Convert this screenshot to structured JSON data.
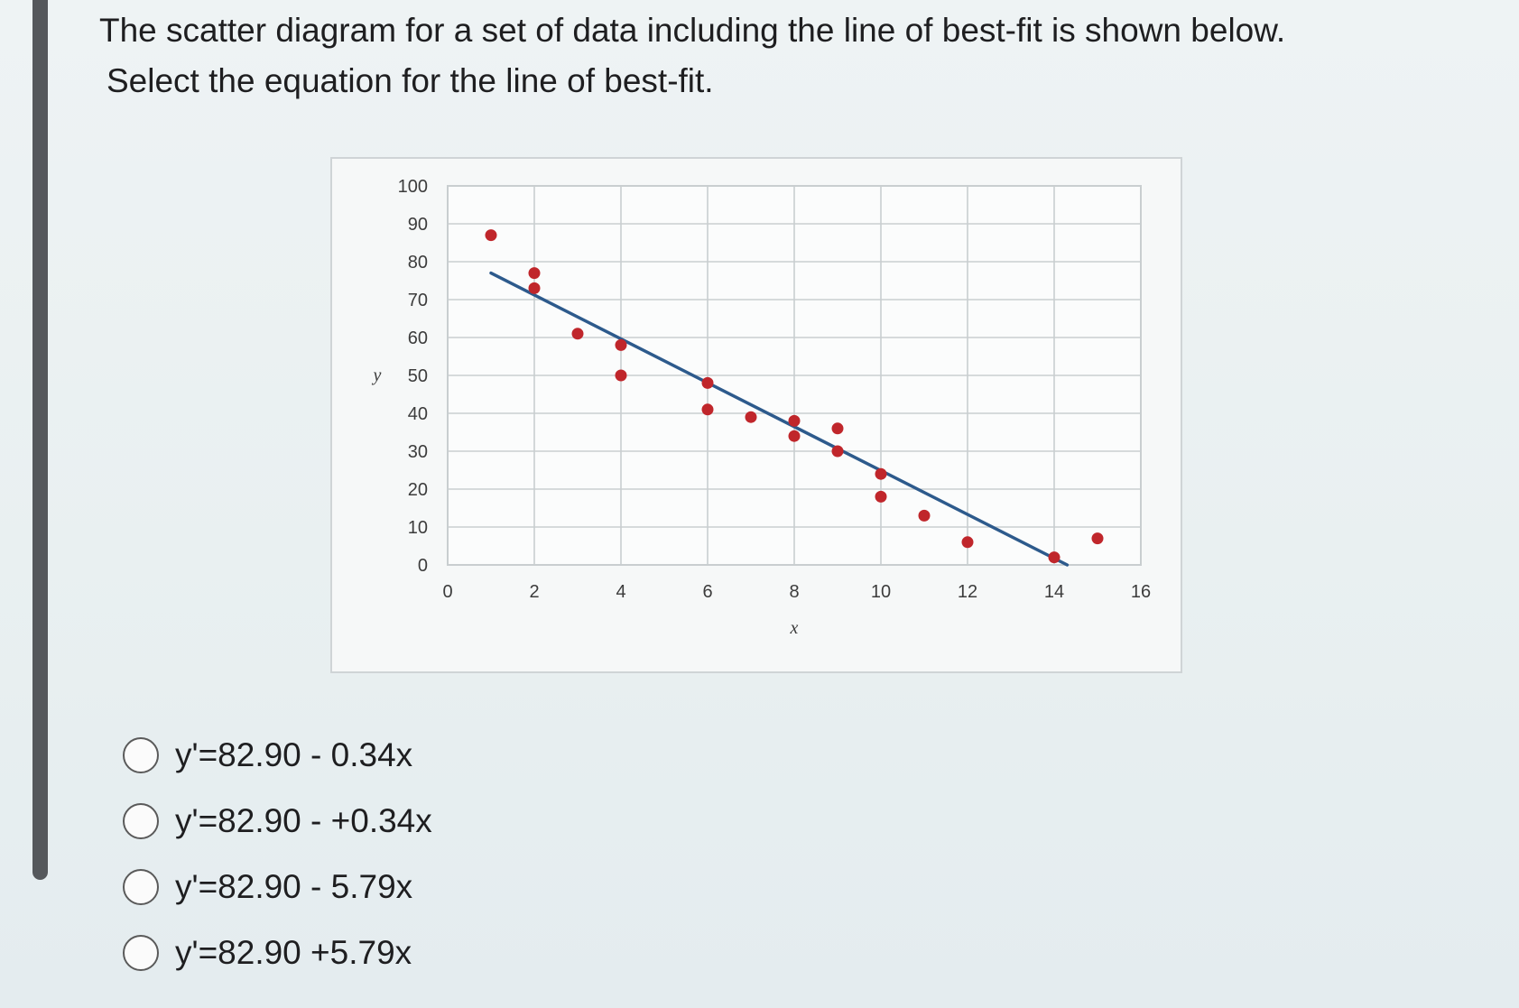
{
  "question": {
    "line1": "The scatter diagram for a set of data including the line of best-fit is shown below.",
    "line2": "Select the equation for the line of best-fit."
  },
  "options": [
    {
      "label": "y'=82.90 - 0.34x"
    },
    {
      "label": "y'=82.90 - +0.34x"
    },
    {
      "label": "y'=82.90 - 5.79x"
    },
    {
      "label": "y'=82.90 +5.79x"
    }
  ],
  "chart_data": {
    "type": "scatter",
    "title": "",
    "xlabel": "x",
    "ylabel": "y",
    "xlim": [
      0,
      16
    ],
    "ylim": [
      0,
      100
    ],
    "x_ticks": [
      "0",
      "2",
      "4",
      "6",
      "8",
      "10",
      "12",
      "14",
      "16"
    ],
    "y_ticks": [
      "0",
      "10",
      "20",
      "30",
      "40",
      "50",
      "60",
      "70",
      "80",
      "90",
      "100"
    ],
    "grid": true,
    "points": [
      {
        "x": 1,
        "y": 87
      },
      {
        "x": 2,
        "y": 77
      },
      {
        "x": 2,
        "y": 73
      },
      {
        "x": 3,
        "y": 61
      },
      {
        "x": 4,
        "y": 58
      },
      {
        "x": 4,
        "y": 50
      },
      {
        "x": 6,
        "y": 48
      },
      {
        "x": 6,
        "y": 41
      },
      {
        "x": 7,
        "y": 39
      },
      {
        "x": 8,
        "y": 38
      },
      {
        "x": 8,
        "y": 34
      },
      {
        "x": 9,
        "y": 36
      },
      {
        "x": 9,
        "y": 30
      },
      {
        "x": 10,
        "y": 24
      },
      {
        "x": 10,
        "y": 18
      },
      {
        "x": 11,
        "y": 13
      },
      {
        "x": 12,
        "y": 6
      },
      {
        "x": 14,
        "y": 2
      },
      {
        "x": 15,
        "y": 7
      }
    ],
    "best_fit_line": {
      "x": [
        1,
        14.3
      ],
      "y": [
        77,
        0
      ]
    },
    "colors": {
      "points": "#c0262b",
      "line": "#2d5a8c",
      "grid": "#c9ced0"
    }
  }
}
